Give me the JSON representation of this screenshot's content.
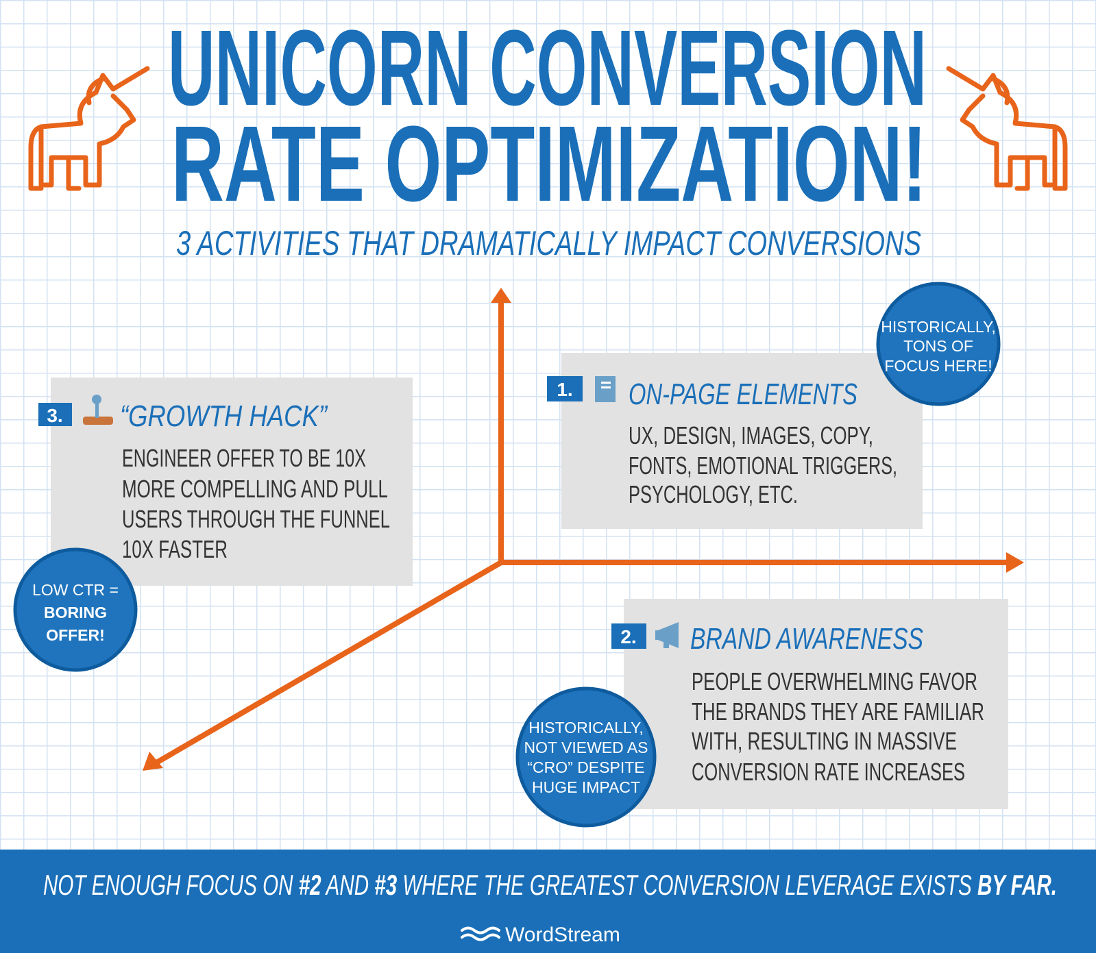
{
  "header": {
    "title_lines": [
      "UNICORN CONVERSION",
      "RATE OPTIMIZATION!"
    ],
    "subtitle": "3 ACTIVITIES THAT DRAMATICALLY IMPACT CONVERSIONS"
  },
  "cards": [
    {
      "number": "1.",
      "title": "ON-PAGE ELEMENTS",
      "body_lines": [
        "UX, DESIGN, IMAGES, COPY,",
        "FONTS, EMOTIONAL TRIGGERS,",
        "PSYCHOLOGY, ETC."
      ]
    },
    {
      "number": "2.",
      "title": "BRAND AWARENESS",
      "body_lines": [
        "PEOPLE OVERWHELMING FAVOR",
        "THE BRANDS THEY ARE FAMILIAR",
        "WITH, RESULTING IN MASSIVE",
        "CONVERSION RATE INCREASES"
      ]
    },
    {
      "number": "3.",
      "title": "“GROWTH HACK”",
      "body_lines": [
        "ENGINEER OFFER TO BE 10X",
        "MORE COMPELLING AND PULL",
        "USERS THROUGH THE FUNNEL",
        "10X FASTER"
      ]
    }
  ],
  "callouts": [
    {
      "lines": [
        "HISTORICALLY,",
        "TONS OF",
        "FOCUS HERE!"
      ]
    },
    {
      "lines": [
        "LOW CTR =",
        "BORING",
        "OFFER!"
      ]
    },
    {
      "lines": [
        "HISTORICALLY,",
        "NOT VIEWED AS",
        "“CRO” DESPITE",
        "HUGE IMPACT"
      ]
    }
  ],
  "footer": {
    "parts": [
      "NOT ENOUGH FOCUS ON ",
      "#2",
      " AND ",
      "#3",
      " WHERE THE GREATEST CONVERSION LEVERAGE EXISTS ",
      "BY FAR",
      "."
    ],
    "brand": "WordStream"
  }
}
